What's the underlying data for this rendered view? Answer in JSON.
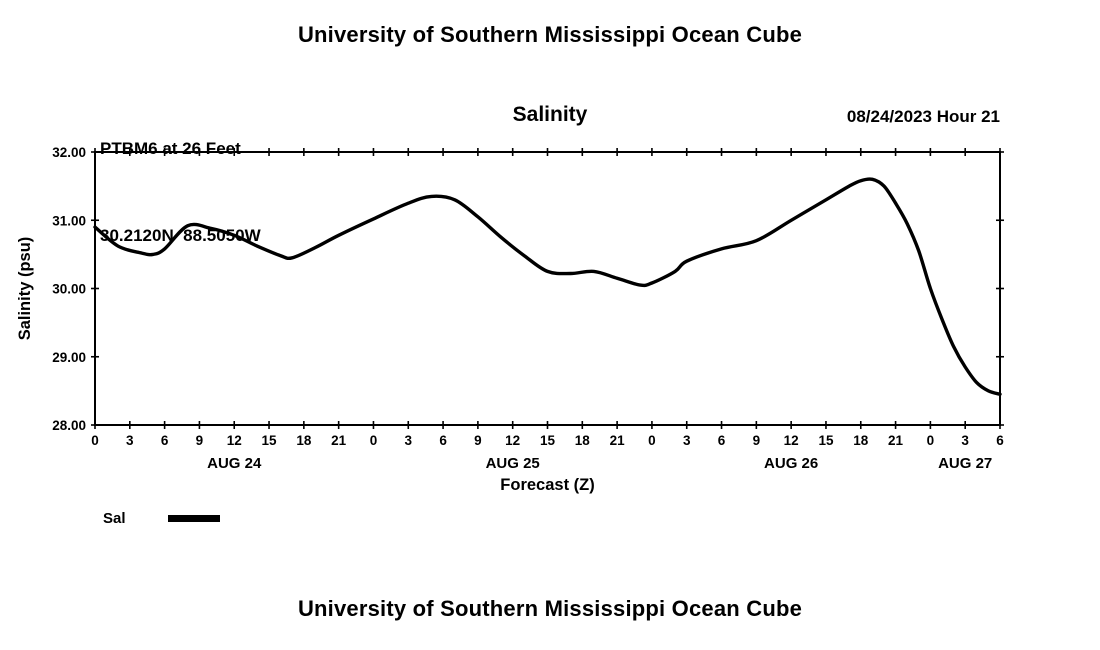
{
  "page": {
    "top_title": "University of Southern Mississippi Ocean Cube",
    "bottom_title": "University of Southern Mississippi Ocean Cube"
  },
  "header": {
    "station": "PTBM6 at 26 Feet",
    "coordinates": "30.2120N  88.5050W",
    "chart_title": "Salinity",
    "run_time": "08/24/2023 Hour 21"
  },
  "legend": {
    "sal_label": "Sal"
  },
  "chart_data": {
    "type": "line",
    "title": "Salinity",
    "xlabel": "Forecast (Z)",
    "ylabel": "Salinity (psu)",
    "xlim": [
      0,
      78
    ],
    "ylim": [
      28.0,
      32.0
    ],
    "grid": false,
    "legend_position": "below-left",
    "line_color": "#000000",
    "y_ticks": [
      28,
      29,
      30,
      31,
      32
    ],
    "y_tick_labels": [
      "28.00",
      "29.00",
      "30.00",
      "31.00",
      "32.00"
    ],
    "x_tick_step": 3,
    "x_tick_labels": [
      "0",
      "3",
      "6",
      "9",
      "12",
      "15",
      "18",
      "21",
      "0",
      "3",
      "6",
      "9",
      "12",
      "15",
      "18",
      "21",
      "0",
      "3",
      "6",
      "9",
      "12",
      "15",
      "18",
      "21",
      "0",
      "3",
      "6"
    ],
    "date_labels": [
      {
        "text": "AUG 24",
        "hour": 12
      },
      {
        "text": "AUG 25",
        "hour": 36
      },
      {
        "text": "AUG 26",
        "hour": 60
      },
      {
        "text": "AUG 27",
        "hour": 75
      }
    ],
    "legend": [
      {
        "name": "Sal",
        "color": "#000000"
      }
    ],
    "series": [
      {
        "name": "Sal",
        "color": "#000000",
        "points": [
          [
            0,
            30.9
          ],
          [
            2,
            30.62
          ],
          [
            4,
            30.52
          ],
          [
            5,
            30.5
          ],
          [
            6,
            30.58
          ],
          [
            8,
            30.92
          ],
          [
            10,
            30.88
          ],
          [
            12,
            30.78
          ],
          [
            14,
            30.62
          ],
          [
            16,
            30.48
          ],
          [
            17,
            30.45
          ],
          [
            19,
            30.6
          ],
          [
            21,
            30.78
          ],
          [
            24,
            31.02
          ],
          [
            27,
            31.25
          ],
          [
            29,
            31.35
          ],
          [
            31,
            31.3
          ],
          [
            33,
            31.05
          ],
          [
            35,
            30.75
          ],
          [
            37,
            30.48
          ],
          [
            39,
            30.25
          ],
          [
            41,
            30.22
          ],
          [
            43,
            30.25
          ],
          [
            45,
            30.15
          ],
          [
            47,
            30.05
          ],
          [
            48,
            30.08
          ],
          [
            50,
            30.25
          ],
          [
            51,
            30.4
          ],
          [
            54,
            30.58
          ],
          [
            57,
            30.7
          ],
          [
            60,
            31.0
          ],
          [
            63,
            31.3
          ],
          [
            65,
            31.5
          ],
          [
            66,
            31.58
          ],
          [
            67,
            31.6
          ],
          [
            68,
            31.5
          ],
          [
            69,
            31.25
          ],
          [
            70,
            30.95
          ],
          [
            71,
            30.55
          ],
          [
            72,
            30.0
          ],
          [
            73,
            29.55
          ],
          [
            74,
            29.15
          ],
          [
            75,
            28.85
          ],
          [
            76,
            28.62
          ],
          [
            77,
            28.5
          ],
          [
            78,
            28.45
          ]
        ]
      }
    ]
  }
}
